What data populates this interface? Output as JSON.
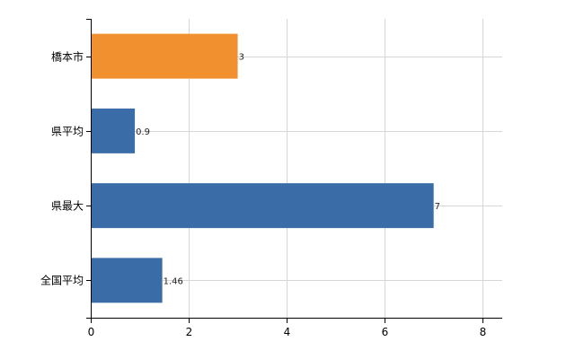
{
  "chart_data": {
    "type": "bar",
    "orientation": "horizontal",
    "categories": [
      "橋本市",
      "県平均",
      "県最大",
      "全国平均"
    ],
    "values": [
      3,
      0.9,
      7,
      1.46
    ],
    "value_labels": [
      "3",
      "0.9",
      "7",
      "1.46"
    ],
    "bar_colors": [
      "#f0902e",
      "#3a6ca8",
      "#3a6ca8",
      "#3a6ca8"
    ],
    "xlim": [
      0,
      8.4
    ],
    "x_ticks": [
      0,
      2,
      4,
      6,
      8
    ],
    "x_tick_labels": [
      "0",
      "2",
      "4",
      "6",
      "8"
    ],
    "grid": true,
    "title": "",
    "xlabel": "",
    "ylabel": ""
  }
}
